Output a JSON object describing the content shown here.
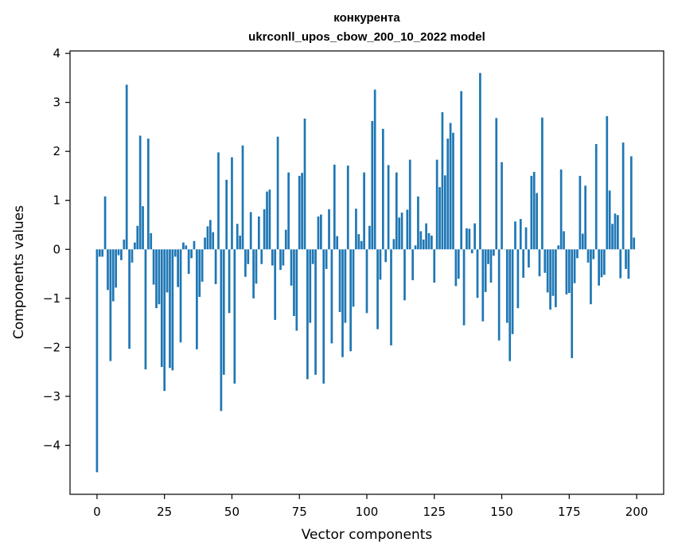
{
  "chart_data": {
    "type": "bar",
    "title": [
      "конкурента",
      "ukrconll_upos_cbow_200_10_2022 model"
    ],
    "xlabel": "Vector components",
    "ylabel": "Components values",
    "xlim": [
      -10,
      210
    ],
    "ylim": [
      -5.0,
      4.05
    ],
    "xticks": [
      0,
      25,
      50,
      75,
      100,
      125,
      150,
      175,
      200
    ],
    "xtick_labels": [
      "0",
      "25",
      "50",
      "75",
      "100",
      "125",
      "150",
      "175",
      "200"
    ],
    "yticks": [
      -4,
      -3,
      -2,
      -1,
      0,
      1,
      2,
      3,
      4
    ],
    "ytick_labels": [
      "−4",
      "−3",
      "−2",
      "−1",
      "0",
      "1",
      "2",
      "3",
      "4"
    ],
    "bar_color": "#1f77b4",
    "grid": false,
    "legend": "none",
    "series": [
      {
        "x_start": 0,
        "values": [
          -4.55,
          -0.15,
          -0.15,
          1.08,
          -0.83,
          -2.28,
          -1.06,
          -0.78,
          -0.12,
          -0.22,
          0.2,
          3.36,
          -2.03,
          -0.27,
          0.14,
          0.48,
          2.32,
          0.88,
          -2.45,
          2.26,
          0.33,
          -0.72,
          -1.2,
          -1.12,
          -2.4,
          -2.89,
          -0.88,
          -2.42,
          -2.47,
          -0.15,
          -0.77,
          -1.9,
          0.14,
          0.08,
          -0.5,
          -0.18,
          0.17,
          -2.04,
          -0.97,
          -0.66,
          0.24,
          0.47,
          0.6,
          0.35,
          -0.71,
          1.98,
          -3.3,
          -2.56,
          1.42,
          -1.3,
          1.88,
          -2.74,
          0.52,
          0.28,
          2.12,
          -0.56,
          -0.3,
          0.76,
          -1.0,
          -0.7,
          0.67,
          -0.3,
          0.82,
          1.18,
          1.22,
          -0.33,
          -1.44,
          2.3,
          -0.42,
          -0.33,
          0.4,
          1.57,
          -0.74,
          -1.36,
          -1.66,
          1.5,
          1.56,
          2.67,
          -2.65,
          -1.5,
          -0.3,
          -2.56,
          0.67,
          0.71,
          -2.74,
          -0.4,
          0.82,
          -1.92,
          1.73,
          0.27,
          -1.28,
          -2.2,
          -1.5,
          1.71,
          -2.08,
          -1.17,
          0.83,
          0.31,
          0.17,
          1.57,
          -1.3,
          0.48,
          2.62,
          3.26,
          -1.63,
          -0.62,
          2.46,
          -0.26,
          1.72,
          -1.96,
          0.21,
          1.57,
          0.65,
          0.75,
          -1.04,
          0.81,
          1.83,
          -0.63,
          0.08,
          1.08,
          0.37,
          0.2,
          0.53,
          0.33,
          0.28,
          -0.68,
          1.83,
          1.27,
          2.8,
          1.51,
          2.26,
          2.58,
          2.38,
          -0.75,
          -0.6,
          3.23,
          -1.55,
          0.43,
          0.42,
          -0.08,
          0.53,
          -0.99,
          3.6,
          -1.47,
          -0.87,
          -0.3,
          -0.68,
          -0.13,
          2.68,
          -1.86,
          1.78,
          0.0,
          -1.5,
          -2.28,
          -1.73,
          0.57,
          -1.2,
          0.62,
          -0.58,
          0.45,
          -0.37,
          1.5,
          1.58,
          1.15,
          -0.55,
          2.69,
          -0.48,
          -0.88,
          -1.23,
          -0.95,
          -1.18,
          0.08,
          1.63,
          0.37,
          -0.92,
          -0.89,
          -2.22,
          -0.69,
          -0.18,
          1.5,
          0.32,
          1.3,
          -0.27,
          -1.12,
          -0.2,
          2.15,
          -0.74,
          -0.57,
          -0.52,
          2.72,
          1.2,
          0.52,
          0.73,
          0.7,
          -0.59,
          2.18,
          -0.4,
          -0.6,
          1.9,
          0.24
        ]
      }
    ]
  }
}
